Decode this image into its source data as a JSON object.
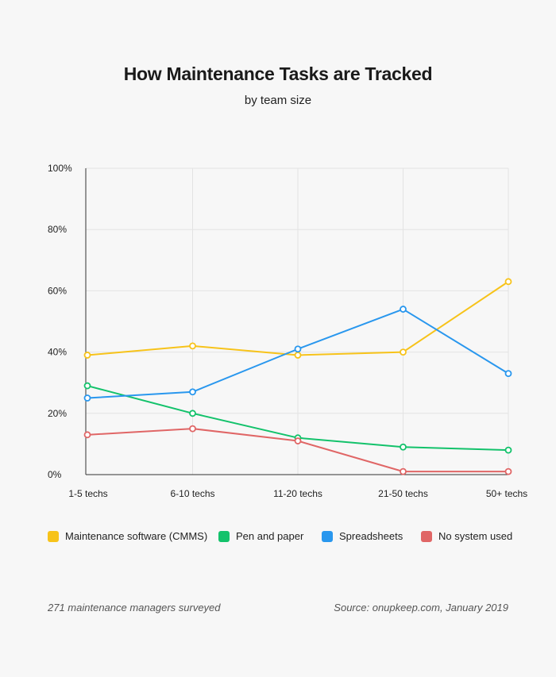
{
  "header": {
    "title": "How Maintenance Tasks are Tracked",
    "subtitle": "by team size"
  },
  "chart_data": {
    "type": "line",
    "title": "How Maintenance Tasks are Tracked",
    "subtitle": "by team size",
    "categories": [
      "1-5 techs",
      "6-10 techs",
      "11-20 techs",
      "21-50 techs",
      "50+ techs"
    ],
    "ylim": [
      0,
      100
    ],
    "yticks": [
      "0%",
      "20%",
      "40%",
      "60%",
      "80%",
      "100%"
    ],
    "grid": true,
    "legend_position": "bottom",
    "series": [
      {
        "name": "Maintenance software (CMMS)",
        "color": "#f7c31a",
        "values": [
          39,
          42,
          39,
          40,
          63
        ]
      },
      {
        "name": "Pen and paper",
        "color": "#13c26b",
        "values": [
          29,
          20,
          12,
          9,
          8
        ]
      },
      {
        "name": "Spreadsheets",
        "color": "#2997ee",
        "values": [
          25,
          27,
          41,
          54,
          33
        ]
      },
      {
        "name": "No system used",
        "color": "#e06666",
        "values": [
          13,
          15,
          11,
          1,
          1
        ]
      }
    ]
  },
  "footer": {
    "left": "271 maintenance managers surveyed",
    "right": "Source: onupkeep.com, January 2019"
  }
}
